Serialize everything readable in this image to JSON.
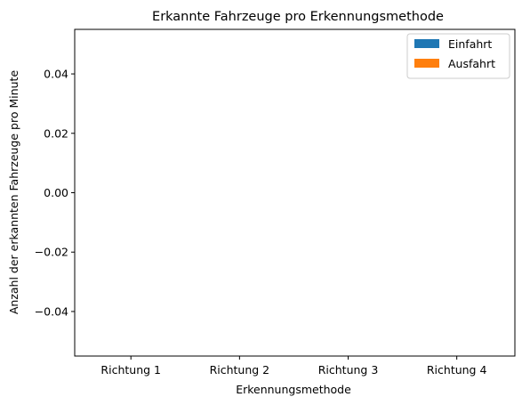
{
  "chart_data": {
    "type": "bar",
    "title": "Erkannte Fahrzeuge pro Erkennungsmethode",
    "xlabel": "Erkennungsmethode",
    "ylabel": "Anzahl der erkannten Fahrzeuge pro Minute",
    "categories": [
      "Richtung 1",
      "Richtung 2",
      "Richtung 3",
      "Richtung 4"
    ],
    "series": [
      {
        "name": "Einfahrt",
        "values": [
          0,
          0,
          0,
          0
        ],
        "color": "#1f77b4"
      },
      {
        "name": "Ausfahrt",
        "values": [
          0,
          0,
          0,
          0
        ],
        "color": "#ff7f0e"
      }
    ],
    "ylim": [
      -0.055,
      0.055
    ],
    "yticks": [
      {
        "value": -0.04,
        "label": "−0.04"
      },
      {
        "value": -0.02,
        "label": "−0.02"
      },
      {
        "value": 0.0,
        "label": "0.00"
      },
      {
        "value": 0.02,
        "label": "0.02"
      },
      {
        "value": 0.04,
        "label": "0.04"
      }
    ],
    "grid": false,
    "legend_position": "top-right"
  }
}
